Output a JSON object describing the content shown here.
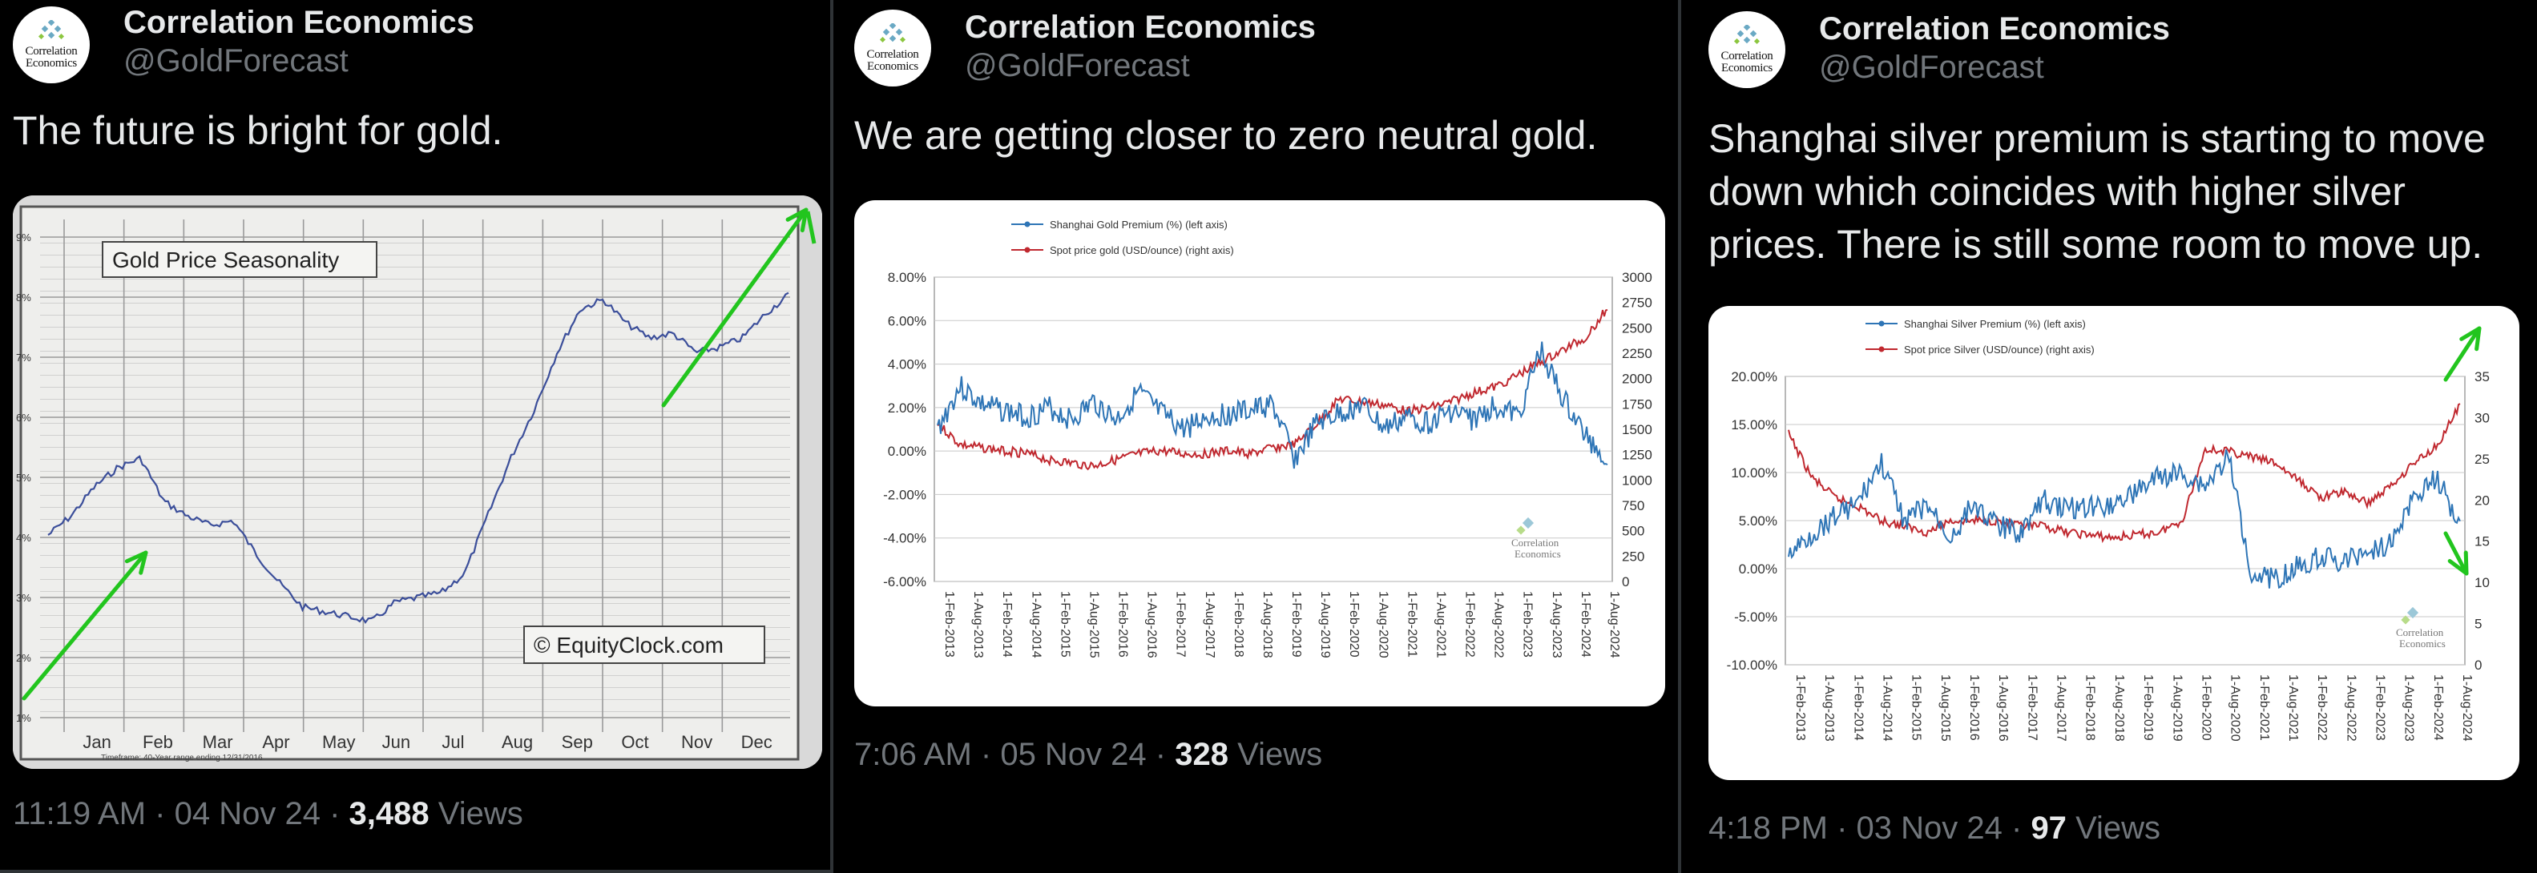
{
  "panels": [
    {
      "author": {
        "name": "Correlation Economics",
        "handle": "@GoldForecast",
        "avatar_text": [
          "Correlation",
          "Economics"
        ]
      },
      "text": "The future is bright for gold.",
      "meta": {
        "time": "11:19 AM",
        "date": "04 Nov 24",
        "views": "3,488",
        "views_label": "Views"
      },
      "chart": {
        "title": "Gold Price Seasonality",
        "watermark": "© EquityClock.com",
        "months": [
          "Jan",
          "Feb",
          "Mar",
          "Apr",
          "May",
          "Jun",
          "Jul",
          "Aug",
          "Sep",
          "Oct",
          "Nov",
          "Dec"
        ],
        "y_ticks": [
          "9%",
          "8%",
          "7%",
          "6%",
          "5%",
          "4%",
          "3%",
          "2%",
          "1%"
        ],
        "footnote": "Timeframe: 40-Year range ending 12/31/2016"
      }
    },
    {
      "author": {
        "name": "Correlation Economics",
        "handle": "@GoldForecast",
        "avatar_text": [
          "Correlation",
          "Economics"
        ]
      },
      "text": "We are getting closer to zero neutral gold.",
      "meta": {
        "time": "7:06 AM",
        "date": "05 Nov 24",
        "views": "328",
        "views_label": "Views"
      },
      "chart": {
        "legend": [
          "Shanghai Gold Premium (%) (left axis)",
          "Spot price gold (USD/ounce) (right axis)"
        ],
        "left_ticks": [
          "8.00%",
          "6.00%",
          "4.00%",
          "2.00%",
          "0.00%",
          "-2.00%",
          "-4.00%",
          "-6.00%"
        ],
        "right_ticks": [
          "3000",
          "2750",
          "2500",
          "2250",
          "2000",
          "1750",
          "1500",
          "1250",
          "1000",
          "750",
          "500",
          "250",
          "0"
        ],
        "x_ticks": [
          "1-Feb-2013",
          "1-Aug-2013",
          "1-Feb-2014",
          "1-Aug-2014",
          "1-Feb-2015",
          "1-Aug-2015",
          "1-Feb-2016",
          "1-Aug-2016",
          "1-Feb-2017",
          "1-Aug-2017",
          "1-Feb-2018",
          "1-Aug-2018",
          "1-Feb-2019",
          "1-Aug-2019",
          "1-Feb-2020",
          "1-Aug-2020",
          "1-Feb-2021",
          "1-Aug-2021",
          "1-Feb-2022",
          "1-Aug-2022",
          "1-Feb-2023",
          "1-Aug-2023",
          "1-Feb-2024",
          "1-Aug-2024"
        ],
        "watermark": [
          "Correlation",
          "Economics"
        ]
      }
    },
    {
      "author": {
        "name": "Correlation Economics",
        "handle": "@GoldForecast",
        "avatar_text": [
          "Correlation",
          "Economics"
        ]
      },
      "text": "Shanghai silver premium is starting to move down which coincides with higher silver prices. There is still some room to move up.",
      "meta": {
        "time": "4:18 PM",
        "date": "03 Nov 24",
        "views": "97",
        "views_label": "Views"
      },
      "chart": {
        "legend": [
          "Shanghai Silver Premium (%) (left axis)",
          "Spot price Silver (USD/ounce) (right axis)"
        ],
        "left_ticks": [
          "20.00%",
          "15.00%",
          "10.00%",
          "5.00%",
          "0.00%",
          "-5.00%",
          "-10.00%"
        ],
        "right_ticks": [
          "35",
          "30",
          "25",
          "20",
          "15",
          "10",
          "5",
          "0"
        ],
        "x_ticks": [
          "1-Feb-2013",
          "1-Aug-2013",
          "1-Feb-2014",
          "1-Aug-2014",
          "1-Feb-2015",
          "1-Aug-2015",
          "1-Feb-2016",
          "1-Aug-2016",
          "1-Feb-2017",
          "1-Aug-2017",
          "1-Feb-2018",
          "1-Aug-2018",
          "1-Feb-2019",
          "1-Aug-2019",
          "1-Feb-2020",
          "1-Aug-2020",
          "1-Feb-2021",
          "1-Aug-2021",
          "1-Feb-2022",
          "1-Aug-2022",
          "1-Feb-2023",
          "1-Aug-2023",
          "1-Feb-2024",
          "1-Aug-2024"
        ],
        "watermark": [
          "Correlation",
          "Economics"
        ]
      }
    }
  ],
  "colors": {
    "background": "#000000",
    "text": "#e7e9ea",
    "muted": "#71767b",
    "premium_line": "#2e75b6",
    "spot_line": "#c0282f",
    "annotation_arrow": "#22c51e",
    "seasonality_line": "#3b4e9a"
  }
}
